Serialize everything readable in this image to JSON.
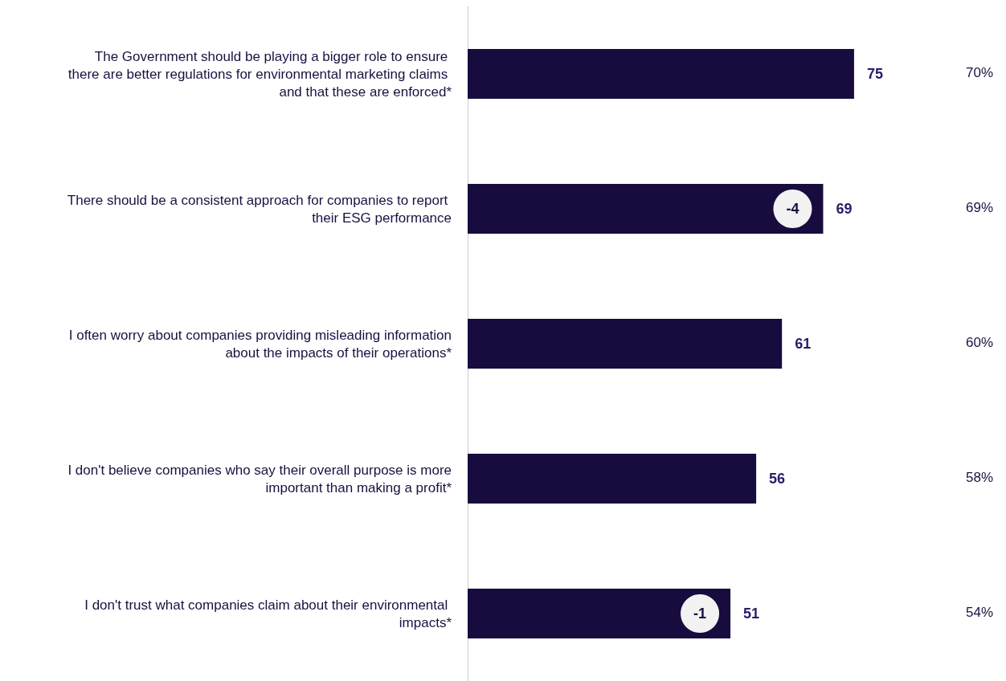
{
  "chart_data": {
    "type": "bar",
    "orientation": "horizontal",
    "categories": [
      "The Government should be playing a bigger role to ensure there are better regulations for environmental marketing claims and that these are enforced*",
      "There should be a consistent approach for companies to report their ESG performance",
      "I often worry about companies providing misleading information about the impacts of their operations*",
      "I don't believe companies who say their overall purpose is more important than making a profit*",
      "I don't trust what companies claim about their environmental impacts*"
    ],
    "values": [
      75,
      69,
      61,
      56,
      51
    ],
    "color": "#180c3e",
    "data_labels": true,
    "grid": false,
    "annotations": [
      "-4",
      "-1",
      "70%",
      "69%",
      "60%",
      "58%",
      "54%"
    ]
  }
}
